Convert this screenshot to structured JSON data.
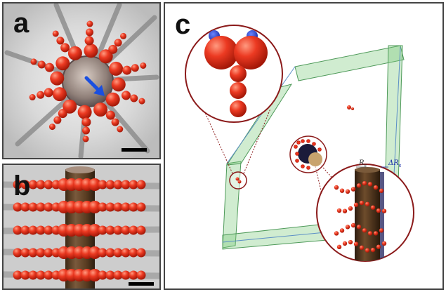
{
  "panels": [
    {
      "id": "a",
      "letter": "a"
    },
    {
      "id": "b",
      "letter": "b"
    },
    {
      "id": "c",
      "letter": "c"
    }
  ],
  "labels": {
    "radius": "R",
    "radius_sub": "s",
    "delta": "ΔR",
    "delta_sub": "s"
  },
  "colors": {
    "bead_red": "#e8321c",
    "bead_highlight": "#ff8a70",
    "cap_blue": "#1f3fd0",
    "arrow_blue": "#1a4fe0",
    "rod_brown": "#5a3a22",
    "box_green": "#79c979",
    "zoom_circle": "#8b1a1a"
  },
  "icons": {
    "arrow": "arrow-icon"
  }
}
